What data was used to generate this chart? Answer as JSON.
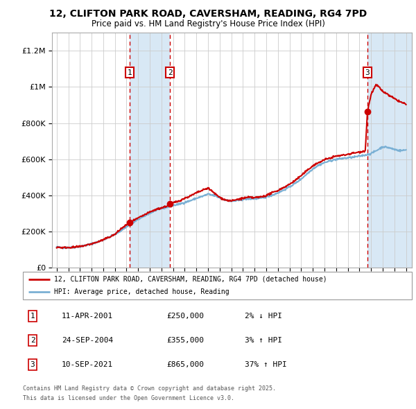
{
  "title": "12, CLIFTON PARK ROAD, CAVERSHAM, READING, RG4 7PD",
  "subtitle": "Price paid vs. HM Land Registry's House Price Index (HPI)",
  "ylim": [
    0,
    1300000
  ],
  "yticks": [
    0,
    200000,
    400000,
    600000,
    800000,
    1000000,
    1200000
  ],
  "ytick_labels": [
    "£0",
    "£200K",
    "£400K",
    "£600K",
    "£800K",
    "£1M",
    "£1.2M"
  ],
  "sale_dates_year": [
    2001.28,
    2004.73,
    2021.69
  ],
  "sale_prices": [
    250000,
    355000,
    865000
  ],
  "sale_labels": [
    "1",
    "2",
    "3"
  ],
  "sale_date_str": [
    "11-APR-2001",
    "24-SEP-2004",
    "10-SEP-2021"
  ],
  "sale_price_str": [
    "£250,000",
    "£355,000",
    "£865,000"
  ],
  "sale_hpi_str": [
    "2% ↓ HPI",
    "3% ↑ HPI",
    "37% ↑ HPI"
  ],
  "legend_line1": "12, CLIFTON PARK ROAD, CAVERSHAM, READING, RG4 7PD (detached house)",
  "legend_line2": "HPI: Average price, detached house, Reading",
  "footer1": "Contains HM Land Registry data © Crown copyright and database right 2025.",
  "footer2": "This data is licensed under the Open Government Licence v3.0.",
  "line_color_red": "#cc0000",
  "line_color_blue": "#7ab0d4",
  "shade_color": "#d8e8f5",
  "grid_color": "#cccccc",
  "background_color": "#ffffff"
}
